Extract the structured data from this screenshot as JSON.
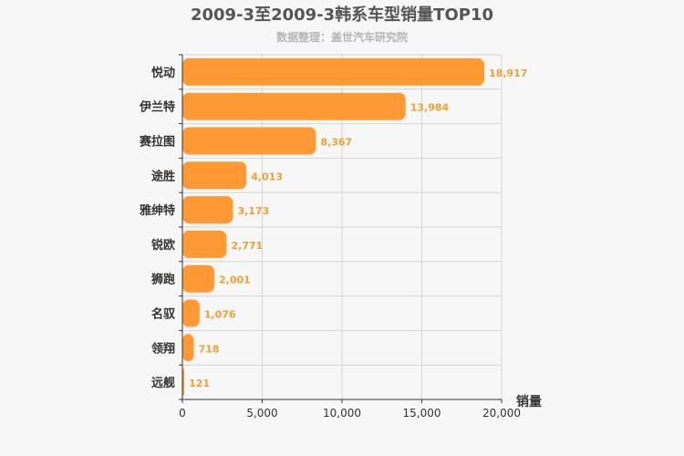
{
  "colors": {
    "bar": "#ff9933",
    "data_label": "#f0a030",
    "grid": "#d6d6d6",
    "axis": "#333333",
    "background": "#f7f7f7"
  },
  "chart_data": {
    "type": "bar",
    "orientation": "horizontal",
    "title": "2009-3至2009-3韩系车型销量TOP10",
    "subtitle": "数据整理：盖世汽车研究院",
    "xlabel": "销量",
    "ylabel": "",
    "categories": [
      "悦动",
      "伊兰特",
      "赛拉图",
      "途胜",
      "雅绅特",
      "锐欧",
      "狮跑",
      "名驭",
      "领翔",
      "远舰"
    ],
    "values": [
      18917,
      13984,
      8367,
      4013,
      3173,
      2771,
      2001,
      1076,
      718,
      121
    ],
    "value_labels": [
      "18,917",
      "13,984",
      "8,367",
      "4,013",
      "3,173",
      "2,771",
      "2,001",
      "1,076",
      "718",
      "121"
    ],
    "xlim": [
      0,
      20000
    ],
    "ticks": [
      0,
      5000,
      10000,
      15000,
      20000
    ],
    "tick_labels": [
      "0",
      "5,000",
      "10,000",
      "15,000",
      "20,000"
    ],
    "grid": true,
    "legend": false
  }
}
